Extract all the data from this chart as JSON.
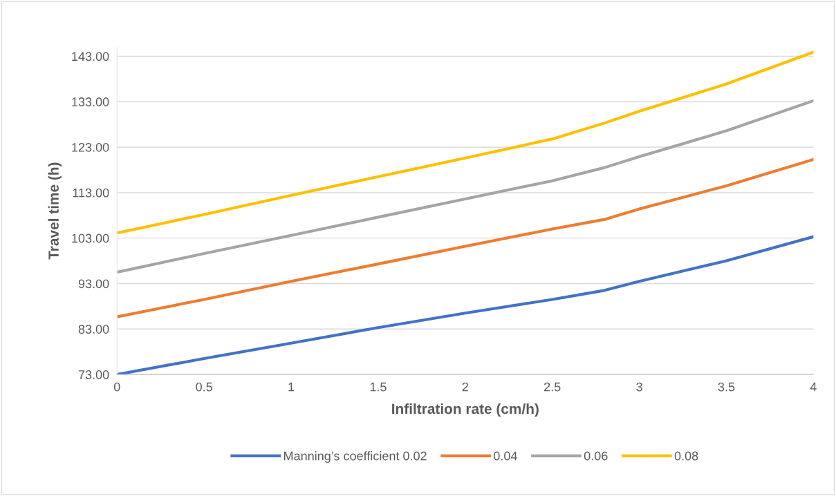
{
  "chart_data": {
    "type": "line",
    "xlabel": "Infiltration rate (cm/h)",
    "ylabel": "Travel time (h)",
    "x": [
      0,
      0.5,
      1,
      1.5,
      2,
      2.5,
      2.8,
      3,
      3.5,
      4
    ],
    "series": [
      {
        "name": "Manning’s coefficient 0.02",
        "color": "#4472c4",
        "values": [
          73.0,
          76.5,
          79.9,
          83.3,
          86.5,
          89.5,
          91.5,
          93.5,
          98.0,
          103.3
        ]
      },
      {
        "name": "0.04",
        "color": "#ed7d31",
        "values": [
          85.7,
          89.5,
          93.5,
          97.3,
          101.2,
          105.0,
          107.1,
          109.4,
          114.5,
          120.3
        ]
      },
      {
        "name": "0.06",
        "color": "#a5a5a5",
        "values": [
          95.5,
          99.6,
          103.6,
          107.6,
          111.6,
          115.6,
          118.5,
          120.9,
          126.6,
          133.2
        ]
      },
      {
        "name": "0.08",
        "color": "#ffc000",
        "values": [
          104.1,
          108.2,
          112.4,
          116.5,
          120.6,
          124.8,
          128.3,
          130.9,
          136.9,
          143.9
        ]
      }
    ],
    "xlim": [
      0,
      4
    ],
    "xticks": [
      0,
      0.5,
      1,
      1.5,
      2,
      2.5,
      3,
      3.5,
      4
    ],
    "ylim": [
      73,
      145
    ],
    "yticks": [
      {
        "value": 73,
        "label": "73.00"
      },
      {
        "value": 83,
        "label": "83.00"
      },
      {
        "value": 93,
        "label": "93.00"
      },
      {
        "value": 103,
        "label": "103.00"
      },
      {
        "value": 113,
        "label": "113.00"
      },
      {
        "value": 123,
        "label": "123.00"
      },
      {
        "value": 133,
        "label": "133.00"
      },
      {
        "value": 143,
        "label": "143.00"
      }
    ],
    "grid": "y",
    "legend": "bottom",
    "marker": "none",
    "line_style": "solid"
  }
}
